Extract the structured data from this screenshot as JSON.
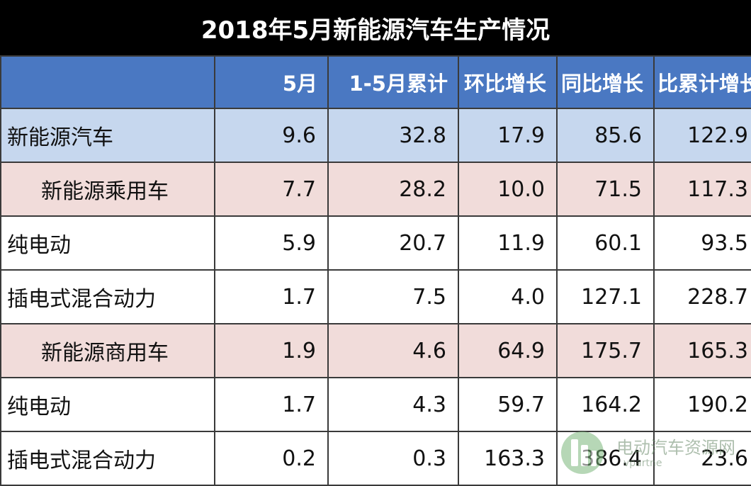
{
  "title": "2018年5月新能源汽车生产情况",
  "columns": [
    "",
    "5月",
    "1-5月累计",
    "环比增长",
    "同比增长",
    "比累计增长"
  ],
  "watermark": {
    "text": "电动汽车资源网",
    "url": "vpartne"
  },
  "chart_data": {
    "type": "table",
    "title": "2018年5月新能源汽车生产情况",
    "columns": [
      "5月",
      "1-5月累计",
      "环比增长",
      "同比增长",
      "比累计增长"
    ],
    "rows": [
      {
        "label": "新能源汽车",
        "values": [
          "9.6",
          "32.8",
          "17.9",
          "85.6",
          "122.9"
        ]
      },
      {
        "label": "新能源乘用车",
        "values": [
          "7.7",
          "28.2",
          "10.0",
          "71.5",
          "117.3"
        ]
      },
      {
        "label": "纯电动",
        "values": [
          "5.9",
          "20.7",
          "11.9",
          "60.1",
          "93.5"
        ]
      },
      {
        "label": "插电式混合动力",
        "values": [
          "1.7",
          "7.5",
          "4.0",
          "127.1",
          "228.7"
        ]
      },
      {
        "label": "新能源商用车",
        "values": [
          "1.9",
          "4.6",
          "64.9",
          "175.7",
          "165.3"
        ]
      },
      {
        "label": "纯电动",
        "values": [
          "1.7",
          "4.3",
          "59.7",
          "164.2",
          "190.2"
        ]
      },
      {
        "label": "插电式混合动力",
        "values": [
          "0.2",
          "0.3",
          "163.3",
          "386.4",
          "23.6"
        ]
      }
    ]
  }
}
